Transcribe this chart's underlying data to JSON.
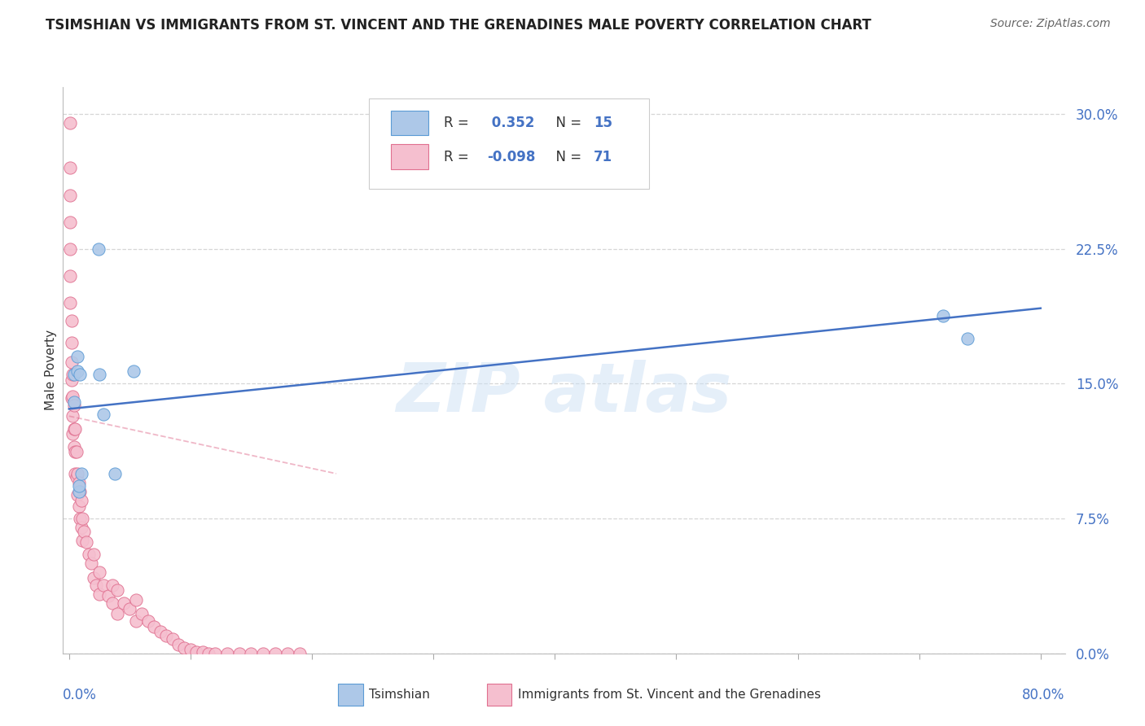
{
  "title": "TSIMSHIAN VS IMMIGRANTS FROM ST. VINCENT AND THE GRENADINES MALE POVERTY CORRELATION CHART",
  "source": "Source: ZipAtlas.com",
  "ylabel": "Male Poverty",
  "ytick_labels": [
    "0.0%",
    "7.5%",
    "15.0%",
    "22.5%",
    "30.0%"
  ],
  "ytick_values": [
    0.0,
    0.075,
    0.15,
    0.225,
    0.3
  ],
  "xlim": [
    -0.005,
    0.82
  ],
  "ylim": [
    -0.005,
    0.32
  ],
  "plot_ylim": [
    0.0,
    0.315
  ],
  "tsimshian_x": [
    0.004,
    0.004,
    0.007,
    0.007,
    0.008,
    0.008,
    0.009,
    0.01,
    0.024,
    0.025,
    0.028,
    0.038,
    0.053,
    0.72,
    0.74
  ],
  "tsimshian_y": [
    0.14,
    0.155,
    0.157,
    0.165,
    0.09,
    0.093,
    0.155,
    0.1,
    0.225,
    0.155,
    0.133,
    0.1,
    0.157,
    0.188,
    0.175
  ],
  "svg_x": [
    0.001,
    0.001,
    0.001,
    0.001,
    0.001,
    0.001,
    0.001,
    0.002,
    0.002,
    0.002,
    0.002,
    0.002,
    0.003,
    0.003,
    0.003,
    0.003,
    0.004,
    0.004,
    0.004,
    0.005,
    0.005,
    0.005,
    0.006,
    0.006,
    0.007,
    0.007,
    0.008,
    0.008,
    0.009,
    0.009,
    0.01,
    0.01,
    0.011,
    0.011,
    0.012,
    0.014,
    0.016,
    0.018,
    0.02,
    0.02,
    0.022,
    0.025,
    0.025,
    0.028,
    0.032,
    0.036,
    0.036,
    0.04,
    0.04,
    0.045,
    0.05,
    0.055,
    0.055,
    0.06,
    0.065,
    0.07,
    0.075,
    0.08,
    0.085,
    0.09,
    0.095,
    0.1,
    0.105,
    0.11,
    0.115,
    0.12,
    0.13,
    0.14,
    0.15,
    0.16,
    0.17,
    0.18,
    0.19
  ],
  "svg_y": [
    0.295,
    0.27,
    0.255,
    0.24,
    0.225,
    0.21,
    0.195,
    0.185,
    0.173,
    0.162,
    0.152,
    0.142,
    0.155,
    0.143,
    0.132,
    0.122,
    0.138,
    0.125,
    0.115,
    0.125,
    0.112,
    0.1,
    0.112,
    0.098,
    0.1,
    0.088,
    0.095,
    0.082,
    0.09,
    0.075,
    0.085,
    0.07,
    0.075,
    0.063,
    0.068,
    0.062,
    0.055,
    0.05,
    0.055,
    0.042,
    0.038,
    0.045,
    0.033,
    0.038,
    0.032,
    0.038,
    0.028,
    0.035,
    0.022,
    0.028,
    0.025,
    0.03,
    0.018,
    0.022,
    0.018,
    0.015,
    0.012,
    0.01,
    0.008,
    0.005,
    0.003,
    0.002,
    0.001,
    0.001,
    0.0,
    0.0,
    0.0,
    0.0,
    0.0,
    0.0,
    0.0,
    0.0,
    0.0
  ],
  "tsimshian_color": "#adc8e8",
  "tsimshian_edge_color": "#5b9bd5",
  "svg_color": "#f5bfcf",
  "svg_edge_color": "#e07090",
  "blue_line_x0": 0.0,
  "blue_line_y0": 0.136,
  "blue_line_x1": 0.8,
  "blue_line_y1": 0.192,
  "pink_line_x0": 0.0,
  "pink_line_y0": 0.132,
  "pink_line_x1": 0.22,
  "pink_line_y1": 0.1,
  "background_color": "#ffffff",
  "grid_color": "#cccccc",
  "ytick_color": "#4472c4",
  "xtick_color": "#4472c4"
}
